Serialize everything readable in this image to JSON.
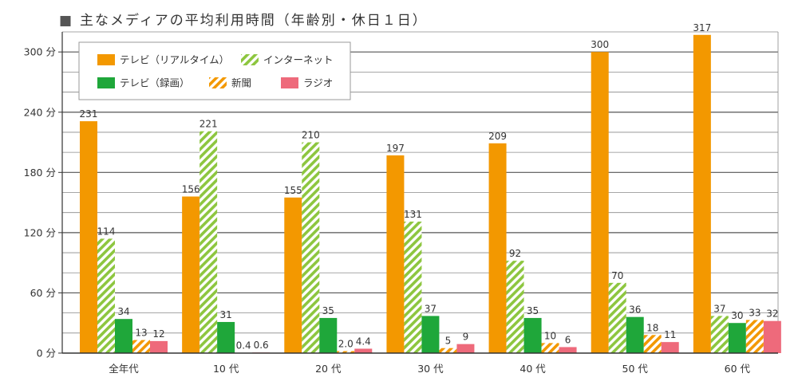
{
  "chart_data": {
    "type": "bar",
    "title": "主なメディアの平均利用時間（年齢別・休日１日）",
    "title_marker": "■",
    "xlabel": "",
    "ylabel": "",
    "ylim": [
      0,
      320
    ],
    "y_ticks": [
      0,
      60,
      120,
      180,
      240,
      300
    ],
    "y_tick_labels": [
      "0 分",
      "60 分",
      "120 分",
      "180 分",
      "240 分",
      "300 分"
    ],
    "grid": true,
    "minor_grid_step": 20,
    "legend_position": "top-left",
    "categories": [
      "全年代",
      "10 代",
      "20 代",
      "30 代",
      "40 代",
      "50 代",
      "60 代"
    ],
    "series": [
      {
        "name": "テレビ（リアルタイム）",
        "color": "#F39800",
        "pattern": "solid",
        "values": [
          231,
          156,
          155,
          197,
          209,
          300,
          317
        ],
        "labels": [
          "231",
          "156",
          "155",
          "197",
          "209",
          "300",
          "317"
        ]
      },
      {
        "name": "インターネット",
        "color": "#8DC63F",
        "pattern": "hatch",
        "values": [
          114,
          221,
          210,
          131,
          92,
          70,
          37
        ],
        "labels": [
          "114",
          "221",
          "210",
          "131",
          "92",
          "70",
          "37"
        ]
      },
      {
        "name": "テレビ（録画）",
        "color": "#1FA73A",
        "pattern": "solid",
        "values": [
          34,
          31,
          35,
          37,
          35,
          36,
          30
        ],
        "labels": [
          "34",
          "31",
          "35",
          "37",
          "35",
          "36",
          "30"
        ]
      },
      {
        "name": "新聞",
        "color": "#F39800",
        "pattern": "hatch",
        "values": [
          13,
          0.4,
          2.0,
          5,
          10,
          18,
          33
        ],
        "labels": [
          "13",
          "0.4",
          "2.0",
          "5",
          "10",
          "18",
          "33"
        ]
      },
      {
        "name": "ラジオ",
        "color": "#EE6A7B",
        "pattern": "solid",
        "values": [
          12,
          0.6,
          4.4,
          9,
          6,
          11,
          32
        ],
        "labels": [
          "12",
          "0.6",
          "4.4",
          "9",
          "6",
          "11",
          "32"
        ]
      }
    ]
  }
}
